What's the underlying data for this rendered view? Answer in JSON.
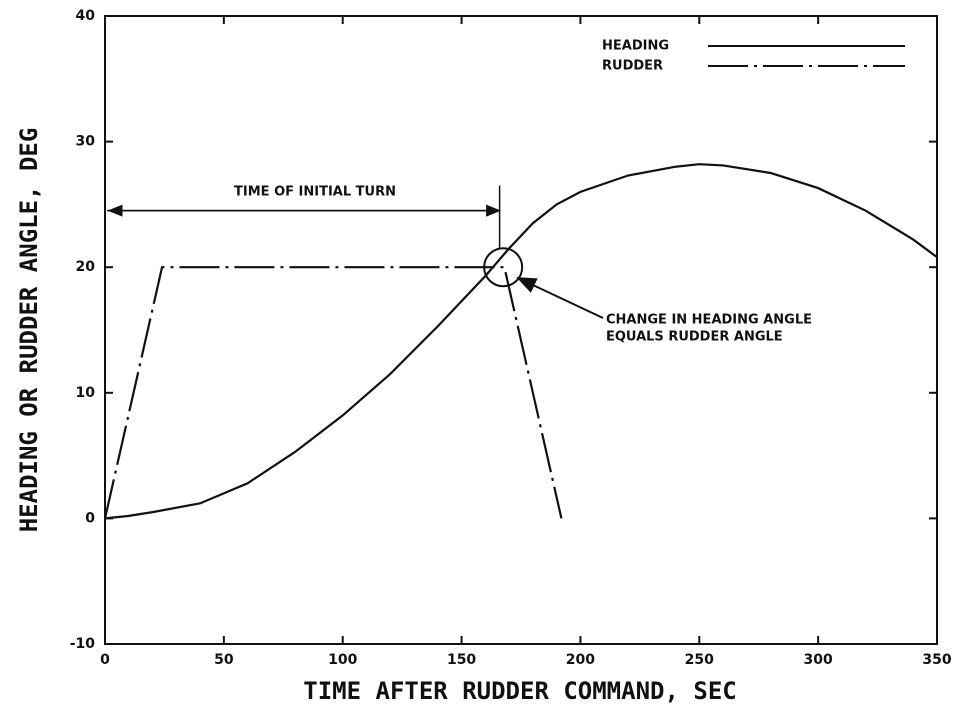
{
  "chart_data": {
    "type": "line",
    "xlabel": "TIME AFTER RUDDER COMMAND, SEC",
    "ylabel": "HEADING OR RUDDER ANGLE, DEG",
    "xlim": [
      0,
      350
    ],
    "xticks": [
      0,
      50,
      100,
      150,
      200,
      250,
      300,
      350
    ],
    "ylim": [
      -10,
      40
    ],
    "yticks": [
      -10,
      0,
      10,
      20,
      30,
      40
    ],
    "legend": "upper right",
    "series": [
      {
        "name": "HEADING",
        "color": "#111111",
        "dash": "solid",
        "x": [
          0,
          10,
          20,
          40,
          60,
          80,
          100,
          120,
          140,
          160,
          170,
          180,
          190,
          200,
          220,
          240,
          250,
          260,
          280,
          300,
          320,
          340,
          350
        ],
        "values": [
          0,
          0.2,
          0.5,
          1.2,
          2.8,
          5.3,
          8.2,
          11.5,
          15.3,
          19.3,
          21.5,
          23.5,
          25,
          26,
          27.3,
          28,
          28.2,
          28.1,
          27.5,
          26.3,
          24.5,
          22.2,
          20.8
        ]
      },
      {
        "name": "RUDDER",
        "color": "#111111",
        "dash": "dashed",
        "x": [
          0,
          24,
          168,
          192
        ],
        "values": [
          0,
          20,
          20,
          0
        ]
      }
    ],
    "annotations": [
      "TIME OF INITIAL TURN",
      "CHANGE IN HEADING ANGLE",
      "EQUALS RUDDER ANGLE"
    ]
  }
}
